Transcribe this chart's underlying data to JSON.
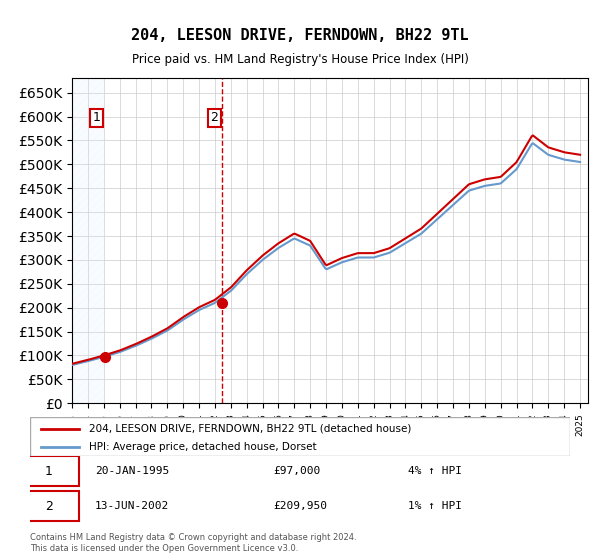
{
  "title": "204, LEESON DRIVE, FERNDOWN, BH22 9TL",
  "subtitle": "Price paid vs. HM Land Registry's House Price Index (HPI)",
  "hpi_label": "HPI: Average price, detached house, Dorset",
  "property_label": "204, LEESON DRIVE, FERNDOWN, BH22 9TL (detached house)",
  "footer": "Contains HM Land Registry data © Crown copyright and database right 2024.\nThis data is licensed under the Open Government Licence v3.0.",
  "sale1_date": "20-JAN-1995",
  "sale1_price": 97000,
  "sale1_hpi": "4% ↑ HPI",
  "sale2_date": "13-JUN-2002",
  "sale2_price": 209950,
  "sale2_hpi": "1% ↑ HPI",
  "sale1_x": 1995.05,
  "sale2_x": 2002.45,
  "ylim_min": 0,
  "ylim_max": 680000,
  "xlim_min": 1993,
  "xlim_max": 2025.5,
  "hpi_color": "#6699cc",
  "property_color": "#cc0000",
  "dashed_color": "#cc0000",
  "background_hatch_color": "#ddeeff",
  "grid_color": "#cccccc",
  "annotation_box_color": "#cc0000"
}
